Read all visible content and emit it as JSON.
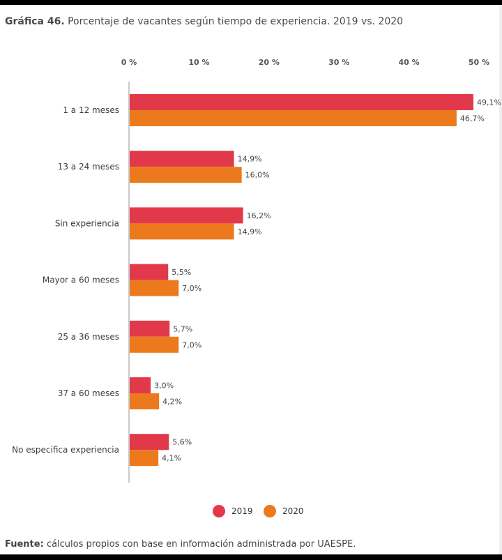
{
  "title": {
    "prefix": "Gráfica 46.",
    "text": "Porcentaje de vacantes según tiempo de experiencia. 2019 vs. 2020"
  },
  "source": {
    "prefix": "Fuente:",
    "text": "cálculos propios con base en información administrada por UAESPE."
  },
  "colors": {
    "2019": "#e2394a",
    "2020": "#ec7a1c",
    "axis": "#b8b8b8",
    "text": "#3c3c3c"
  },
  "chart_data": {
    "type": "bar",
    "orientation": "horizontal",
    "xlim": [
      0,
      50
    ],
    "ticks": [
      0,
      10,
      20,
      30,
      40,
      50
    ],
    "tick_labels": [
      "0 %",
      "10 %",
      "20 %",
      "30 %",
      "40 %",
      "50 %"
    ],
    "categories": [
      "1 a 12 meses",
      "13 a 24 meses",
      "Sin experiencia",
      "Mayor a 60 meses",
      "25 a 36 meses",
      "37 a 60 meses",
      "No especifica experiencia"
    ],
    "series": [
      {
        "name": "2019",
        "values": [
          49.1,
          14.9,
          16.2,
          5.5,
          5.7,
          3.0,
          5.6
        ],
        "labels": [
          "49,1%",
          "14,9%",
          "16,2%",
          "5,5%",
          "5,7%",
          "3,0%",
          "5,6%"
        ]
      },
      {
        "name": "2020",
        "values": [
          46.7,
          16.0,
          14.9,
          7.0,
          7.0,
          4.2,
          4.1
        ],
        "labels": [
          "46,7%",
          "16,0%",
          "14,9%",
          "7,0%",
          "7,0%",
          "4,2%",
          "4,1%"
        ]
      }
    ],
    "legend_position": "bottom-center",
    "grid": false
  }
}
